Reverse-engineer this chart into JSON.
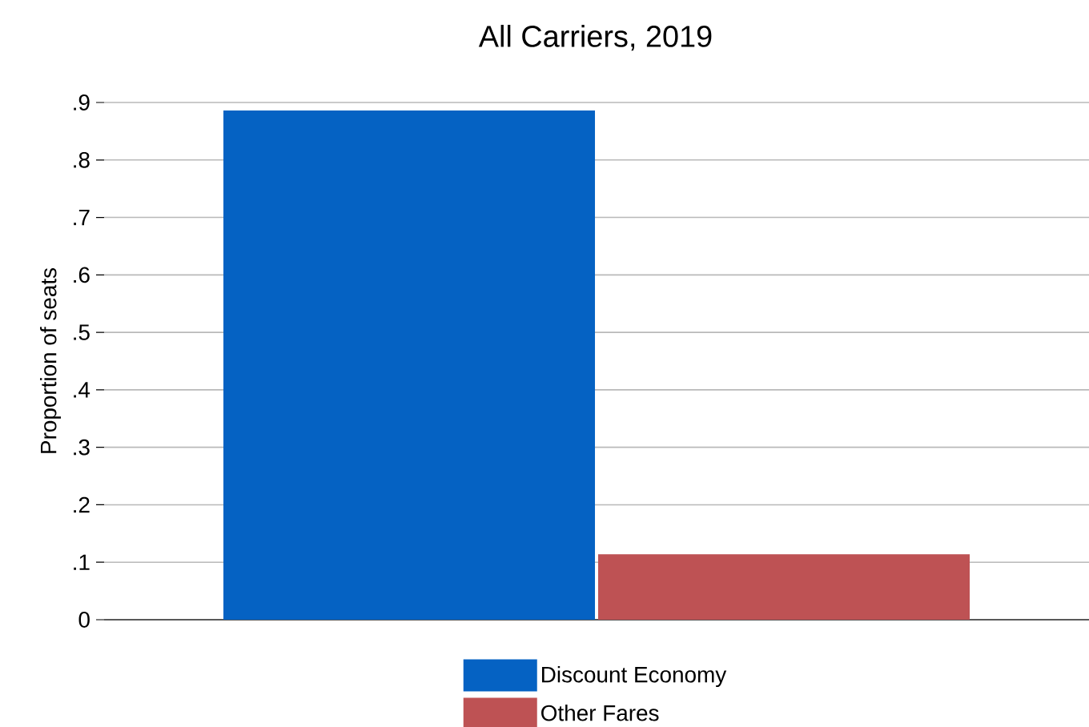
{
  "chart_data": {
    "type": "bar",
    "title": "All Carriers, 2019",
    "ylabel": "Proportion of seats",
    "categories": [
      null
    ],
    "series": [
      {
        "name": "Discount Economy",
        "color": "#0562c3",
        "values": [
          0.886
        ]
      },
      {
        "name": "Other Fares",
        "color": "#be5254",
        "values": [
          0.114
        ]
      }
    ],
    "ylim": [
      0,
      0.9
    ],
    "yticks": [
      0,
      {
        "value": 0.1,
        "label": ".1"
      },
      {
        "value": 0.2,
        "label": ".2"
      },
      {
        "value": 0.3,
        "label": ".3"
      },
      {
        "value": 0.4,
        "label": ".4"
      },
      {
        "value": 0.5,
        "label": ".5"
      },
      {
        "value": 0.6,
        "label": ".6"
      },
      {
        "value": 0.7,
        "label": ".7"
      },
      {
        "value": 0.8,
        "label": ".8"
      },
      {
        "value": 0.9,
        "label": ".9"
      }
    ],
    "grid": "y",
    "legend": "bottom"
  }
}
